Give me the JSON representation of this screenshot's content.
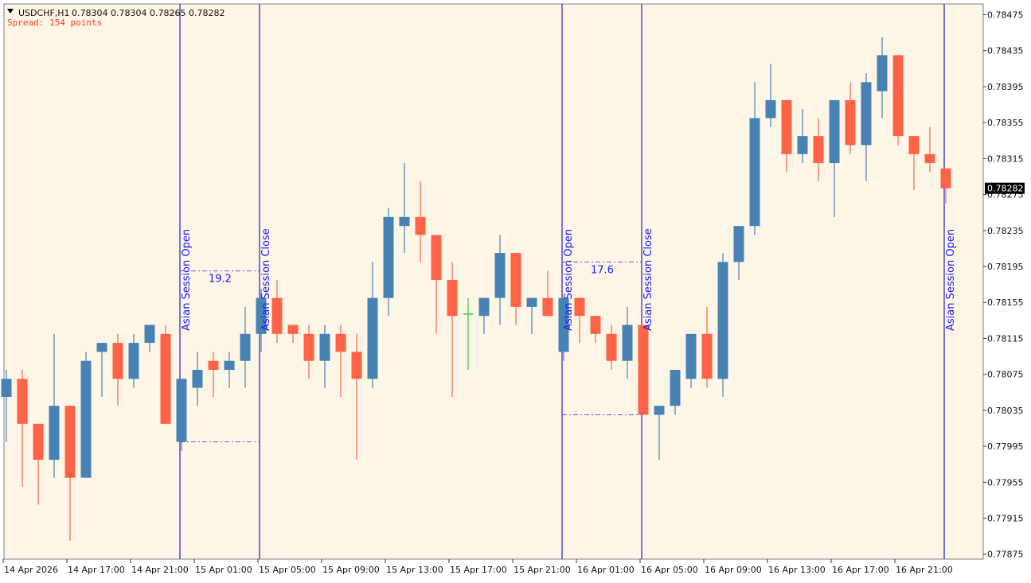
{
  "header": {
    "symbol": "USDCHF,H1",
    "ohlc": "0.78304 0.78304 0.78265 0.78282",
    "spread": "Spread: 154 points"
  },
  "price_label": "0.78282",
  "colors": {
    "background": "#fdf5e6",
    "bull": "#4682b4",
    "bear": "#ff6347",
    "doji": "#32cd32",
    "session_line": "#2020d0",
    "range_line": "#6060e0",
    "price_tag_bg": "#000000"
  },
  "chart_data": {
    "type": "candlestick",
    "x_tick_labels": [
      "14 Apr 2026",
      "14 Apr 17:00",
      "14 Apr 21:00",
      "15 Apr 01:00",
      "15 Apr 05:00",
      "15 Apr 09:00",
      "15 Apr 13:00",
      "15 Apr 17:00",
      "15 Apr 21:00",
      "16 Apr 01:00",
      "16 Apr 05:00",
      "16 Apr 09:00",
      "16 Apr 13:00",
      "16 Apr 17:00",
      "16 Apr 21:00"
    ],
    "x_tick_candle_index": [
      0,
      4,
      8,
      12,
      16,
      20,
      24,
      28,
      32,
      36,
      40,
      44,
      48,
      52,
      56
    ],
    "y_tick_labels": [
      "0.78475",
      "0.78435",
      "0.78395",
      "0.78355",
      "0.78315",
      "0.78275",
      "0.78235",
      "0.78195",
      "0.78155",
      "0.78115",
      "0.78075",
      "0.78035",
      "0.77995",
      "0.77955",
      "0.77915",
      "0.77875"
    ],
    "ylim": [
      0.77873,
      0.78479
    ],
    "candles": [
      [
        0.7805,
        0.7808,
        0.78,
        0.7807
      ],
      [
        0.7807,
        0.7808,
        0.7795,
        0.7802
      ],
      [
        0.7802,
        0.7802,
        0.7793,
        0.7798
      ],
      [
        0.7798,
        0.7812,
        0.7796,
        0.7804
      ],
      [
        0.7804,
        0.7804,
        0.7789,
        0.7796
      ],
      [
        0.7796,
        0.781,
        0.7796,
        0.7809
      ],
      [
        0.781,
        0.7811,
        0.7805,
        0.7811
      ],
      [
        0.7811,
        0.7812,
        0.7804,
        0.7807
      ],
      [
        0.7807,
        0.7812,
        0.7806,
        0.7811
      ],
      [
        0.7811,
        0.7813,
        0.781,
        0.7813
      ],
      [
        0.7812,
        0.7813,
        0.7802,
        0.7802
      ],
      [
        0.78,
        0.7807,
        0.7799,
        0.7807
      ],
      [
        0.7806,
        0.781,
        0.7804,
        0.7808
      ],
      [
        0.7809,
        0.781,
        0.7805,
        0.7808
      ],
      [
        0.7808,
        0.781,
        0.7806,
        0.7809
      ],
      [
        0.7809,
        0.7815,
        0.7806,
        0.7812
      ],
      [
        0.7812,
        0.7817,
        0.781,
        0.7816
      ],
      [
        0.7816,
        0.7818,
        0.7811,
        0.7812
      ],
      [
        0.7813,
        0.7813,
        0.7811,
        0.7812
      ],
      [
        0.7812,
        0.7813,
        0.7807,
        0.7809
      ],
      [
        0.7809,
        0.7813,
        0.7806,
        0.7812
      ],
      [
        0.7812,
        0.7813,
        0.7805,
        0.781
      ],
      [
        0.781,
        0.7812,
        0.7798,
        0.7807
      ],
      [
        0.7807,
        0.782,
        0.7806,
        0.7816
      ],
      [
        0.7816,
        0.7826,
        0.7814,
        0.7825
      ],
      [
        0.7824,
        0.7831,
        0.7821,
        0.7825
      ],
      [
        0.7825,
        0.7829,
        0.782,
        0.7823
      ],
      [
        0.7823,
        0.7823,
        0.7812,
        0.7818
      ],
      [
        0.7818,
        0.782,
        0.7805,
        0.7814
      ],
      [
        0.78142,
        0.7816,
        0.7808,
        0.78142
      ],
      [
        0.7814,
        0.7816,
        0.7812,
        0.7816
      ],
      [
        0.7816,
        0.7823,
        0.7813,
        0.7821
      ],
      [
        0.7821,
        0.7821,
        0.7813,
        0.7815
      ],
      [
        0.7815,
        0.7816,
        0.7812,
        0.7816
      ],
      [
        0.7816,
        0.7819,
        0.7814,
        0.7814
      ],
      [
        0.781,
        0.7816,
        0.7809,
        0.7816
      ],
      [
        0.7816,
        0.7816,
        0.7811,
        0.7814
      ],
      [
        0.7814,
        0.7814,
        0.7811,
        0.7812
      ],
      [
        0.7812,
        0.7813,
        0.7808,
        0.7809
      ],
      [
        0.7809,
        0.7815,
        0.7807,
        0.7813
      ],
      [
        0.7813,
        0.7813,
        0.7803,
        0.7803
      ],
      [
        0.7803,
        0.7804,
        0.7798,
        0.7804
      ],
      [
        0.7804,
        0.7808,
        0.7803,
        0.7808
      ],
      [
        0.7807,
        0.7812,
        0.7806,
        0.7812
      ],
      [
        0.7812,
        0.7815,
        0.7806,
        0.7807
      ],
      [
        0.7807,
        0.7821,
        0.7805,
        0.782
      ],
      [
        0.782,
        0.7824,
        0.7818,
        0.7824
      ],
      [
        0.7824,
        0.784,
        0.7823,
        0.7836
      ],
      [
        0.7836,
        0.7842,
        0.7835,
        0.7838
      ],
      [
        0.7838,
        0.7838,
        0.783,
        0.7832
      ],
      [
        0.7832,
        0.7837,
        0.7831,
        0.7834
      ],
      [
        0.7834,
        0.7836,
        0.7829,
        0.7831
      ],
      [
        0.7831,
        0.7838,
        0.7825,
        0.7838
      ],
      [
        0.7838,
        0.784,
        0.7832,
        0.7833
      ],
      [
        0.7833,
        0.7841,
        0.7829,
        0.784
      ],
      [
        0.7839,
        0.7845,
        0.7836,
        0.7843
      ],
      [
        0.7843,
        0.7843,
        0.7833,
        0.7834
      ],
      [
        0.7834,
        0.7834,
        0.7828,
        0.7832
      ],
      [
        0.7832,
        0.7835,
        0.783,
        0.7831
      ],
      [
        0.78304,
        0.78304,
        0.78265,
        0.78282
      ]
    ],
    "sessions": [
      {
        "label": "Asian Session Open",
        "candle_index": 11
      },
      {
        "label": "Asian Session Close",
        "candle_index": 16
      },
      {
        "label": "Asian Session Open",
        "candle_index": 35
      },
      {
        "label": "Asian Session Close",
        "candle_index": 40
      },
      {
        "label": "Asian Session Open",
        "candle_index": 59
      }
    ],
    "ranges": [
      {
        "label": "19.2",
        "from_index": 11,
        "to_index": 16,
        "high": 0.7819,
        "low": 0.78
      },
      {
        "label": "17.6",
        "from_index": 35,
        "to_index": 40,
        "high": 0.782,
        "low": 0.7803
      }
    ],
    "current_price": 0.78282
  }
}
